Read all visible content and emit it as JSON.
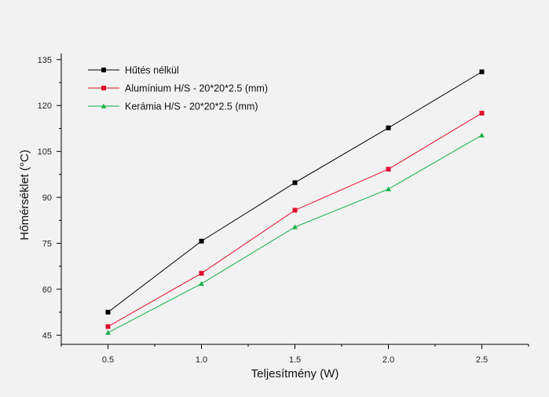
{
  "chart_data": {
    "type": "line",
    "title": "",
    "xlabel": "Teljesítmény (W)",
    "ylabel": "Hőmérséklet (°C)",
    "x": [
      0.5,
      1.0,
      1.5,
      2.0,
      2.5
    ],
    "x_tick_labels": [
      "0.5",
      "1.0",
      "1.5",
      "2.0",
      "2.5"
    ],
    "xlim": [
      0.25,
      2.75
    ],
    "ylim": [
      42,
      137
    ],
    "y_ticks": [
      45,
      60,
      75,
      90,
      105,
      120,
      135
    ],
    "y_tick_labels": [
      "45",
      "60",
      "75",
      "90",
      "105",
      "120",
      "135"
    ],
    "grid": false,
    "legend_position": "top-left",
    "series": [
      {
        "name": "Hűtés nélkül",
        "color": "#000000",
        "marker": "square",
        "values": [
          52.5,
          75.7,
          94.8,
          112.7,
          131.0
        ]
      },
      {
        "name": "Alumínium  H/S - 20*20*2.5 (mm)",
        "color": "#e0102f",
        "marker": "square",
        "values": [
          47.8,
          65.2,
          85.8,
          99.2,
          117.5
        ]
      },
      {
        "name": "Kerámia  H/S - 20*20*2.5 (mm)",
        "color": "#13b04a",
        "marker": "triangle",
        "values": [
          45.8,
          61.8,
          80.3,
          92.7,
          110.3
        ]
      }
    ]
  }
}
